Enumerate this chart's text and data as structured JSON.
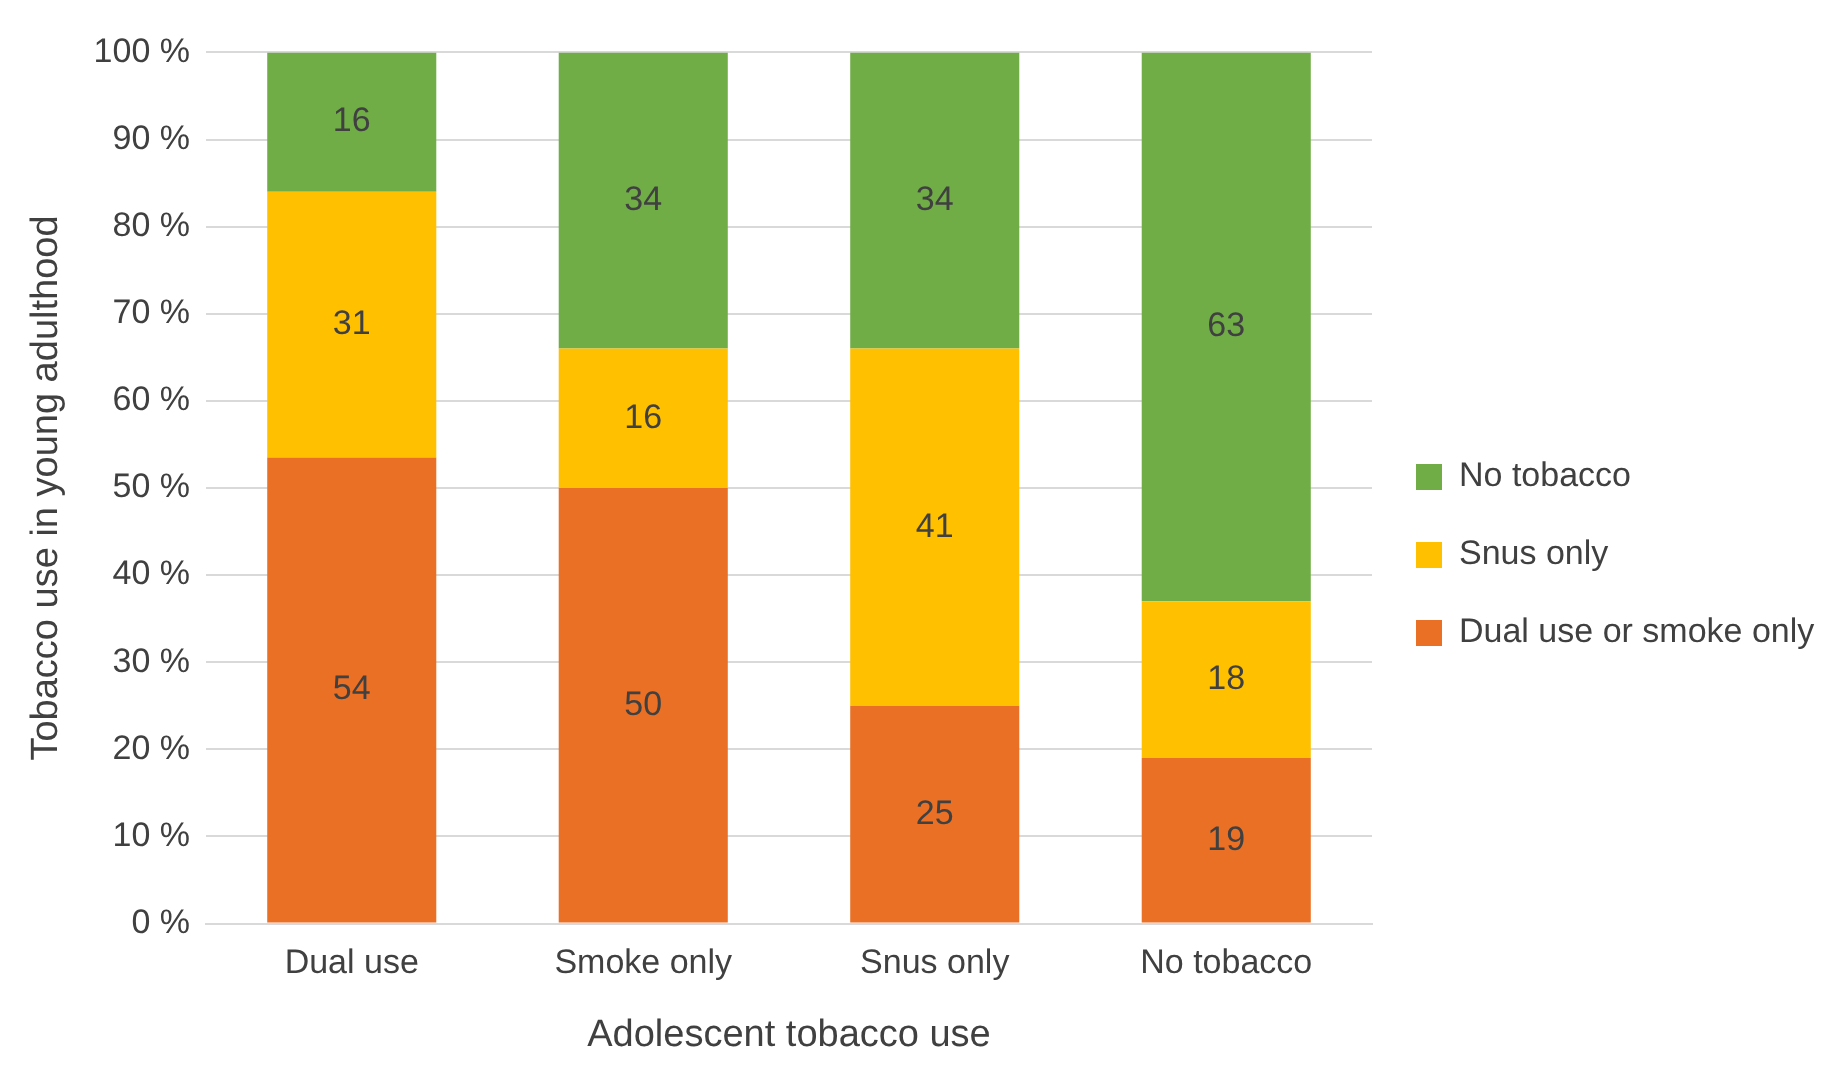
{
  "chart_data": {
    "type": "bar",
    "stacked": true,
    "xlabel": "Adolescent tobacco use",
    "ylabel": "Tobacco use in young adulthood",
    "categories": [
      "Dual use",
      "Smoke only",
      "Snus only",
      "No tobacco"
    ],
    "series": [
      {
        "name": "Dual use or smoke only",
        "color": "#e97024",
        "values": [
          53.5,
          50,
          25,
          19
        ],
        "value_labels": [
          "54",
          "50",
          "25",
          "19"
        ]
      },
      {
        "name": "Snus only",
        "color": "#ffc000",
        "values": [
          30.5,
          16,
          41,
          18
        ],
        "value_labels": [
          "31",
          "16",
          "41",
          "18"
        ]
      },
      {
        "name": "No tobacco",
        "color": "#70ad47",
        "values": [
          16,
          34,
          34,
          63
        ],
        "value_labels": [
          "16",
          "34",
          "34",
          "63"
        ]
      }
    ],
    "ylim": [
      0,
      100
    ],
    "yticks": [
      {
        "value": 0,
        "label": "0 %"
      },
      {
        "value": 10,
        "label": "10 %"
      },
      {
        "value": 20,
        "label": "20 %"
      },
      {
        "value": 30,
        "label": "30 %"
      },
      {
        "value": 40,
        "label": "40 %"
      },
      {
        "value": 50,
        "label": "50 %"
      },
      {
        "value": 60,
        "label": "60 %"
      },
      {
        "value": 70,
        "label": "70 %"
      },
      {
        "value": 80,
        "label": "80 %"
      },
      {
        "value": 90,
        "label": "90 %"
      },
      {
        "value": 100,
        "label": "100 %"
      }
    ],
    "grid": "y",
    "legend": "right"
  }
}
